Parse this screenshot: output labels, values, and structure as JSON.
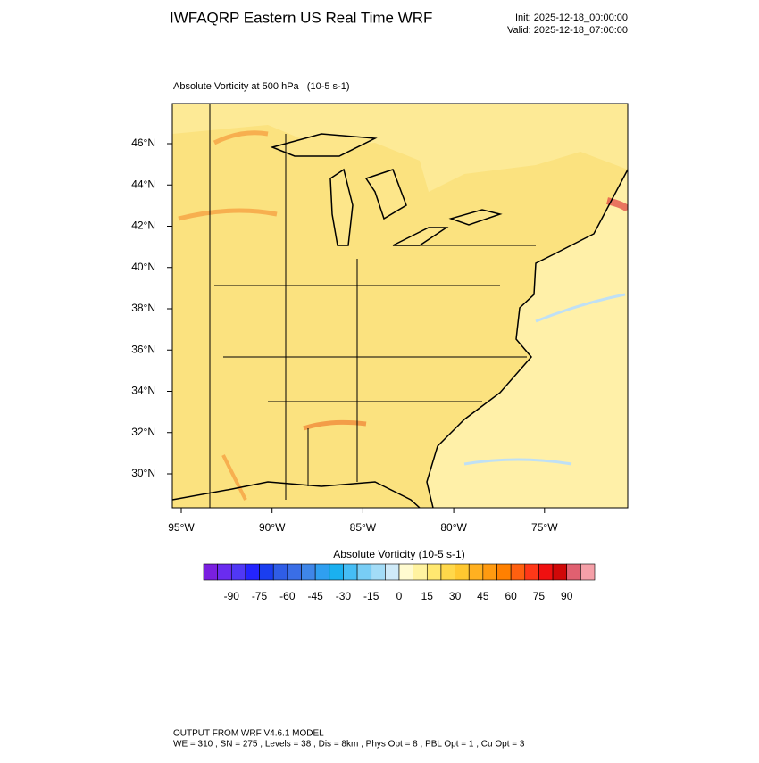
{
  "header": {
    "title": "IWFAQRP Eastern US Real Time WRF",
    "init": "Init: 2025-12-18_00:00:00",
    "valid": "Valid: 2025-12-18_07:00:00"
  },
  "map": {
    "title": "Absolute Vorticity at 500 hPa   (10-5 s-1)",
    "lat_labels": [
      "46°N",
      "44°N",
      "42°N",
      "40°N",
      "38°N",
      "36°N",
      "34°N",
      "32°N",
      "30°N"
    ],
    "lon_labels": [
      "95°W",
      "90°W",
      "85°W",
      "80°W",
      "75°W"
    ]
  },
  "colorbar": {
    "title": "Absolute Vorticity  (10-5 s-1)",
    "lim": [
      -105,
      105
    ],
    "ticks": [
      -90,
      -75,
      -60,
      -45,
      -30,
      -15,
      0,
      15,
      30,
      45,
      60,
      75,
      90
    ],
    "colors": [
      "#7a1fe0",
      "#6a2cf0",
      "#5038f5",
      "#2424ff",
      "#1a3ef0",
      "#2f5de6",
      "#3a6ee6",
      "#3f86e8",
      "#2f9ff0",
      "#1ab0f0",
      "#45bdf5",
      "#78cdf5",
      "#a3dcf7",
      "#cfeaf8",
      "#fffbd0",
      "#fff3a0",
      "#ffe870",
      "#ffd84a",
      "#ffc830",
      "#ffb020",
      "#ff9a10",
      "#ff8000",
      "#ff6010",
      "#ff3818",
      "#f01010",
      "#d00808",
      "#e06070",
      "#f5a0a8"
    ]
  },
  "footer": {
    "line1": "OUTPUT FROM WRF V4.6.1 MODEL",
    "line2": "WE = 310 ; SN = 275 ; Levels = 38 ; Dis = 8km ; Phys Opt = 8 ; PBL Opt = 1 ; Cu Opt = 3"
  }
}
